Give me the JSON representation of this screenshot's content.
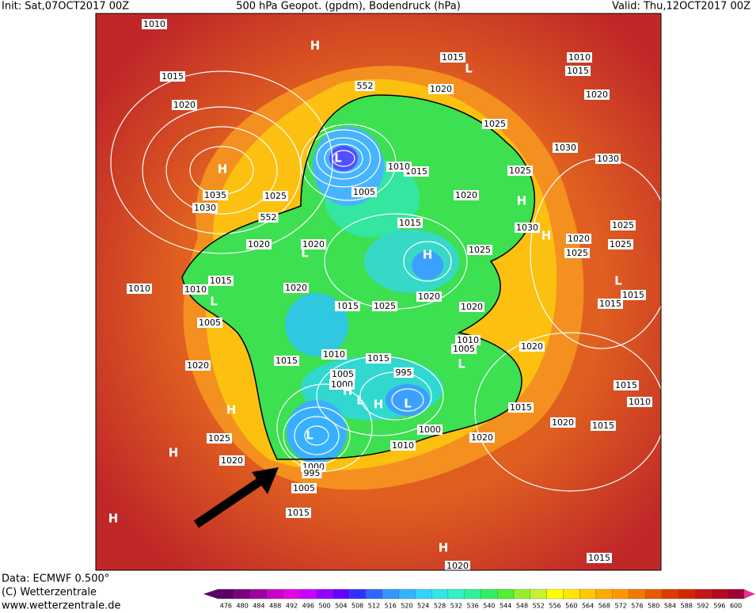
{
  "header": {
    "init": "Init: Sat,07OCT2017 00Z",
    "title": "500 hPa Geopot. (gpdm), Bodendruck (hPa)",
    "valid": "Valid: Thu,12OCT2017 00Z"
  },
  "footer": {
    "source": "Data: ECMWF   0.500°",
    "copyright": "(C) Wetterzentrale",
    "url": "www.wetterzentrale.de"
  },
  "colorbar": {
    "ticks": [
      476,
      480,
      484,
      488,
      492,
      496,
      500,
      504,
      508,
      512,
      516,
      520,
      524,
      528,
      532,
      536,
      540,
      544,
      548,
      552,
      556,
      560,
      564,
      568,
      572,
      576,
      580,
      584,
      588,
      592,
      596,
      600
    ],
    "colors": [
      "#5a0064",
      "#7a0080",
      "#a000a0",
      "#c800c8",
      "#e600e6",
      "#c800ff",
      "#9600ff",
      "#6400ff",
      "#3232ff",
      "#3264ff",
      "#3296ff",
      "#32b4ff",
      "#32d2ff",
      "#32e6e6",
      "#32f0c8",
      "#32f096",
      "#32f064",
      "#50f032",
      "#96f032",
      "#c8f032",
      "#ffff00",
      "#ffe600",
      "#ffc800",
      "#ffaa00",
      "#ff9600",
      "#f07800",
      "#e65a00",
      "#dc3c00",
      "#d22800",
      "#c81414",
      "#b40a1e",
      "#a00032"
    ]
  },
  "map": {
    "labels": [
      "1010",
      "1015",
      "1020",
      "1035",
      "1030",
      "1025",
      "1020",
      "1015",
      "1010",
      "1010",
      "1005",
      "1020",
      "1025",
      "1020",
      "1005",
      "1015",
      "1020",
      "1015",
      "1015",
      "1020",
      "1010",
      "1015",
      "1020",
      "1025",
      "1030",
      "1030",
      "1025",
      "1020",
      "1030",
      "1020",
      "1025",
      "1025",
      "1025",
      "1015",
      "1020",
      "1025",
      "1020",
      "1015",
      "1025",
      "1020",
      "1020",
      "1010",
      "1005",
      "1020",
      "1015",
      "1010",
      "1015",
      "1005",
      "1000",
      "995",
      "1000",
      "1010",
      "1020",
      "1015",
      "1020",
      "1015",
      "1015",
      "1010",
      "1015",
      "1015",
      "1005",
      "1015",
      "1010",
      "1000",
      "995",
      "552",
      "552"
    ],
    "centers": [
      "H",
      "H",
      "L",
      "H",
      "H",
      "L",
      "H",
      "L",
      "L",
      "L",
      "H",
      "L",
      "H",
      "L",
      "H",
      "H",
      "H",
      "L",
      "L",
      "L",
      "H"
    ]
  }
}
